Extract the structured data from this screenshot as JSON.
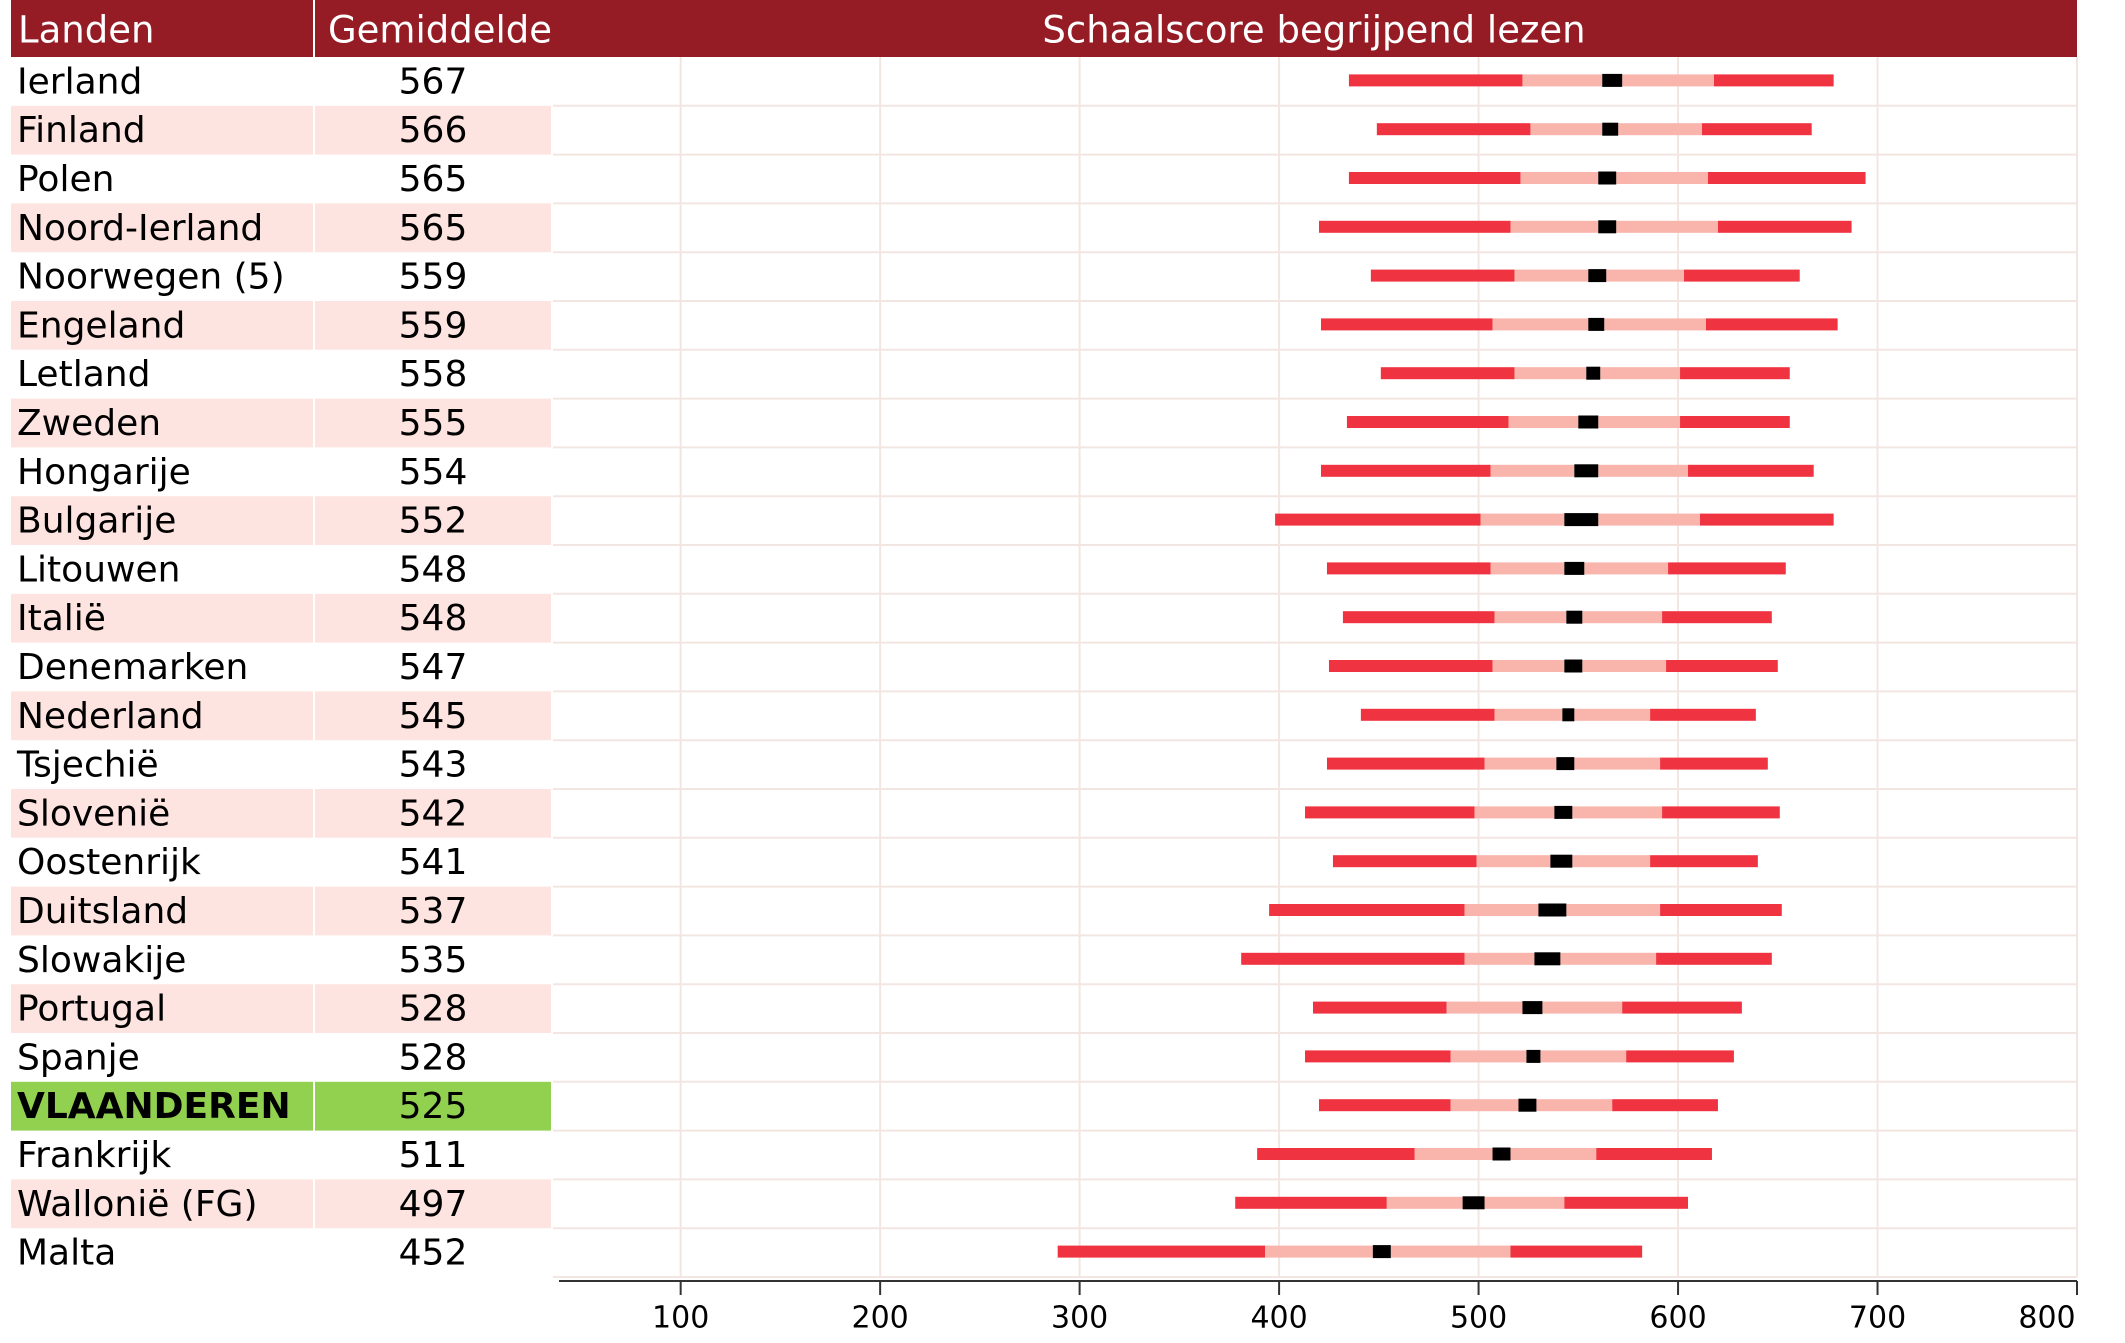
{
  "chart_data": {
    "type": "percentile-bars",
    "headers": [
      "Landen",
      "Gemiddelde",
      "Schaalscore begrijpend lezen"
    ],
    "categories": [
      "Ierland",
      "Finland",
      "Polen",
      "Noord-Ierland",
      "Noorwegen (5)",
      "Engeland",
      "Letland",
      "Zweden",
      "Hongarije",
      "Bulgarije",
      "Litouwen",
      "Italië",
      "Denemarken",
      "Nederland",
      "Tsjechië",
      "Slovenië",
      "Oostenrijk",
      "Duitsland",
      "Slowakije",
      "Portugal",
      "Spanje",
      "VLAANDEREN",
      "Frankrijk",
      "Wallonië (FG)",
      "Malta"
    ],
    "values": [
      567,
      566,
      565,
      565,
      559,
      559,
      558,
      555,
      554,
      552,
      548,
      548,
      547,
      545,
      543,
      542,
      541,
      537,
      535,
      528,
      528,
      525,
      511,
      497,
      452
    ],
    "p5": [
      435,
      449,
      435,
      420,
      446,
      421,
      451,
      434,
      421,
      398,
      424,
      432,
      425,
      441,
      424,
      413,
      427,
      395,
      381,
      417,
      413,
      420,
      389,
      378,
      289
    ],
    "p25": [
      522,
      526,
      521,
      516,
      518,
      507,
      518,
      515,
      506,
      501,
      506,
      508,
      507,
      508,
      503,
      498,
      499,
      493,
      493,
      484,
      486,
      486,
      468,
      454,
      393
    ],
    "ci_low": [
      562,
      562,
      560,
      560,
      555,
      555,
      554,
      550,
      548,
      543,
      543,
      544,
      543,
      542,
      539,
      538,
      536,
      530,
      528,
      522,
      524,
      520,
      507,
      492,
      447
    ],
    "ci_high": [
      572,
      570,
      569,
      569,
      564,
      563,
      561,
      560,
      560,
      560,
      553,
      552,
      552,
      548,
      548,
      547,
      547,
      544,
      541,
      532,
      531,
      529,
      516,
      503,
      456
    ],
    "p75": [
      618,
      612,
      615,
      620,
      603,
      614,
      601,
      601,
      605,
      611,
      595,
      592,
      594,
      586,
      591,
      592,
      586,
      591,
      589,
      572,
      574,
      567,
      559,
      543,
      516
    ],
    "p95": [
      678,
      667,
      694,
      687,
      661,
      680,
      656,
      656,
      668,
      678,
      654,
      647,
      650,
      639,
      645,
      651,
      640,
      652,
      647,
      632,
      628,
      620,
      617,
      605,
      582
    ],
    "xlim": [
      36,
      800
    ],
    "xticks": [
      100,
      200,
      300,
      400,
      500,
      600,
      700,
      800
    ],
    "grid": true,
    "highlight": "VLAANDEREN",
    "colors": {
      "header": "#951b24",
      "stripe": "#fde4e0",
      "highlight": "#92d050",
      "outer": "#ef3340",
      "inner": "#f9b4ab",
      "ci": "#000000"
    }
  }
}
